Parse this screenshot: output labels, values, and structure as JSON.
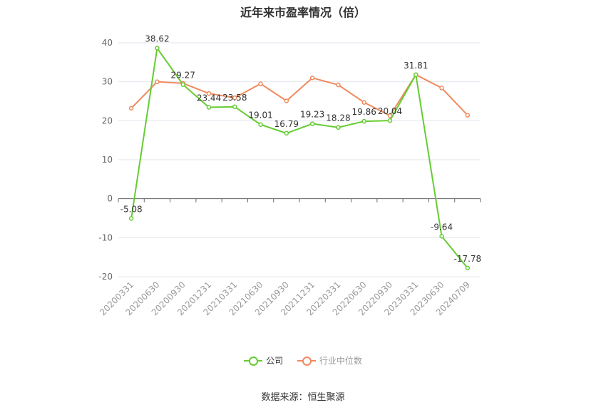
{
  "chart_data": {
    "type": "line",
    "title": "近年来市盈率情况（倍）",
    "categories": [
      "20200331",
      "20200630",
      "20200930",
      "20201231",
      "20210331",
      "20210630",
      "20210930",
      "20211231",
      "20220331",
      "20220630",
      "20220930",
      "20230331",
      "20230630",
      "20240709"
    ],
    "ylim": [
      -20,
      40
    ],
    "yticks": [
      -20,
      -10,
      0,
      10,
      20,
      30,
      40
    ],
    "grid": true,
    "legend_position": "bottom",
    "series": [
      {
        "name": "公司",
        "color": "#66cc33",
        "values": [
          -5.08,
          38.62,
          29.27,
          23.44,
          23.58,
          19.01,
          16.79,
          19.23,
          18.28,
          19.86,
          20.04,
          31.81,
          -9.64,
          -17.78
        ],
        "labels": [
          "-5.08",
          "38.62",
          "29.27",
          "23.44",
          "23.58",
          "19.01",
          "16.79",
          "19.23",
          "18.28",
          "19.86",
          "20.04",
          "31.81",
          "-9.64",
          "-17.78"
        ]
      },
      {
        "name": "行业中位数",
        "color": "#f08a5d",
        "values": [
          23.2,
          30.0,
          29.6,
          27.0,
          25.9,
          29.5,
          25.1,
          31.0,
          29.2,
          24.7,
          21.3,
          31.8,
          28.4,
          21.4
        ]
      }
    ]
  },
  "source": "数据来源：恒生聚源"
}
